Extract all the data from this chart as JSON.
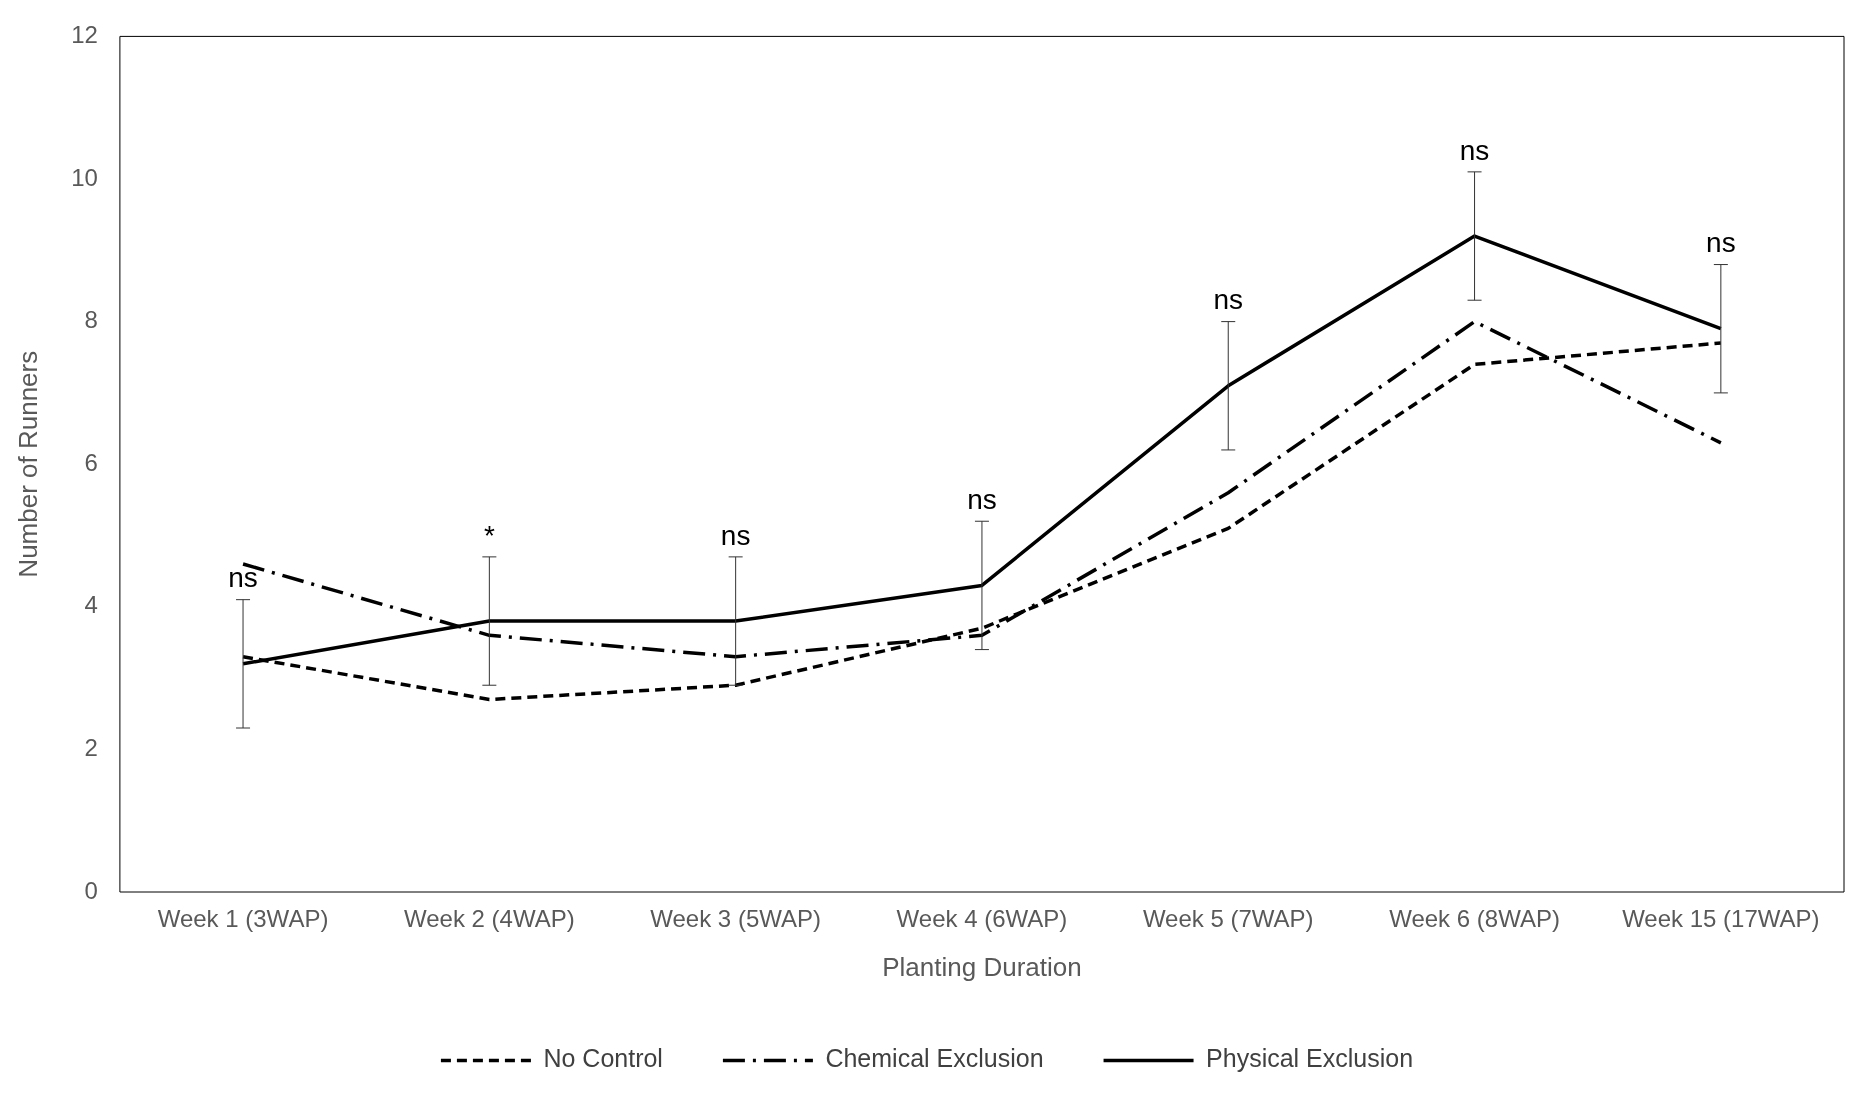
{
  "chart_data": {
    "type": "line",
    "xlabel": "Planting Duration",
    "ylabel": "Number of Runners",
    "categories": [
      "Week 1 (3WAP)",
      "Week 2 (4WAP)",
      "Week 3 (5WAP)",
      "Week 4 (6WAP)",
      "Week 5 (7WAP)",
      "Week 6 (8WAP)",
      "Week 15 (17WAP)"
    ],
    "series": [
      {
        "name": "No Control",
        "color": "#000000",
        "line_style": "dashed",
        "values": [
          3.3,
          2.7,
          2.9,
          3.7,
          5.1,
          7.4,
          7.7
        ]
      },
      {
        "name": "Chemical Exclusion",
        "color": "#000000",
        "line_style": "dashdot",
        "values": [
          4.6,
          3.6,
          3.3,
          3.6,
          5.6,
          8.0,
          6.3
        ]
      },
      {
        "name": "Physical Exclusion",
        "color": "#000000",
        "line_style": "solid",
        "values": [
          3.2,
          3.8,
          3.8,
          4.3,
          7.1,
          9.2,
          7.9
        ],
        "errors": [
          0.9,
          0.9,
          0.9,
          0.9,
          0.9,
          0.9,
          0.9
        ]
      }
    ],
    "ylim": [
      0,
      12
    ],
    "yticks": [
      0,
      2,
      4,
      6,
      8,
      10,
      12
    ],
    "grid": false,
    "legend": "bottom",
    "marker": "none",
    "annotations": [
      {
        "text": "ns",
        "x": "Week 1 (3WAP)",
        "y": 4.1
      },
      {
        "text": "*",
        "x": "Week 2 (4WAP)",
        "y": 4.7
      },
      {
        "text": "ns",
        "x": "Week 3 (5WAP)",
        "y": 4.7
      },
      {
        "text": "ns",
        "x": "Week 4 (6WAP)",
        "y": 5.2
      },
      {
        "text": "ns",
        "x": "Week 5 (7WAP)",
        "y": 8.0
      },
      {
        "text": "ns",
        "x": "Week 6 (8WAP)",
        "y": 10.1
      },
      {
        "text": "ns",
        "x": "Week 15 (17WAP)",
        "y": 8.8
      }
    ]
  }
}
